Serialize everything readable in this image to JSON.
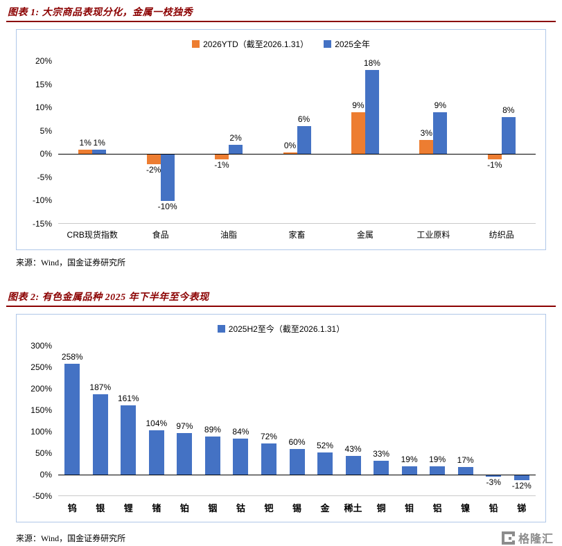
{
  "colors": {
    "header_red": "#8B0000",
    "box_border": "#AFC7E8",
    "orange": "#ED7D31",
    "blue": "#4472C4",
    "zero_line": "#000000",
    "watermark_gray": "#8C8C8C"
  },
  "fig1": {
    "header": "图表 1: 大宗商品表现分化，金属一枝独秀",
    "source": "来源：Wind，国金证券研究所"
  },
  "fig2": {
    "header": "图表 2: 有色金属品种 2025 年下半年至今表现",
    "source": "来源：Wind，国金证券研究所"
  },
  "watermark": {
    "text": "格隆汇"
  },
  "chart_data": [
    {
      "type": "bar",
      "title": "图表 1: 大宗商品表现分化，金属一枝独秀",
      "categories": [
        "CRB现货指数",
        "食品",
        "油脂",
        "家畜",
        "金属",
        "工业原料",
        "纺织品"
      ],
      "series": [
        {
          "name": "2026YTD（截至2026.1.31）",
          "color": "#ED7D31",
          "values": [
            1,
            -2,
            -1,
            0,
            9,
            3,
            -1
          ]
        },
        {
          "name": "2025全年",
          "color": "#4472C4",
          "values": [
            1,
            -10,
            2,
            6,
            18,
            9,
            8
          ]
        }
      ],
      "unit": "%",
      "ylim": [
        -15,
        20
      ],
      "ytick_step": 5,
      "legend_position": "top",
      "grid": false
    },
    {
      "type": "bar",
      "title": "图表 2: 有色金属品种 2025 年下半年至今表现",
      "categories": [
        "钨",
        "银",
        "锂",
        "锗",
        "铂",
        "铟",
        "钴",
        "钯",
        "锡",
        "金",
        "稀土",
        "铜",
        "钼",
        "铝",
        "镍",
        "铅",
        "锑"
      ],
      "series": [
        {
          "name": "2025H2至今（截至2026.1.31）",
          "color": "#4472C4",
          "values": [
            258,
            187,
            161,
            104,
            97,
            89,
            84,
            72,
            60,
            52,
            43,
            33,
            19,
            19,
            17,
            -3,
            -12
          ]
        }
      ],
      "unit": "%",
      "ylim": [
        -50,
        300
      ],
      "ytick_step": 50,
      "legend_position": "top",
      "grid": false
    }
  ]
}
